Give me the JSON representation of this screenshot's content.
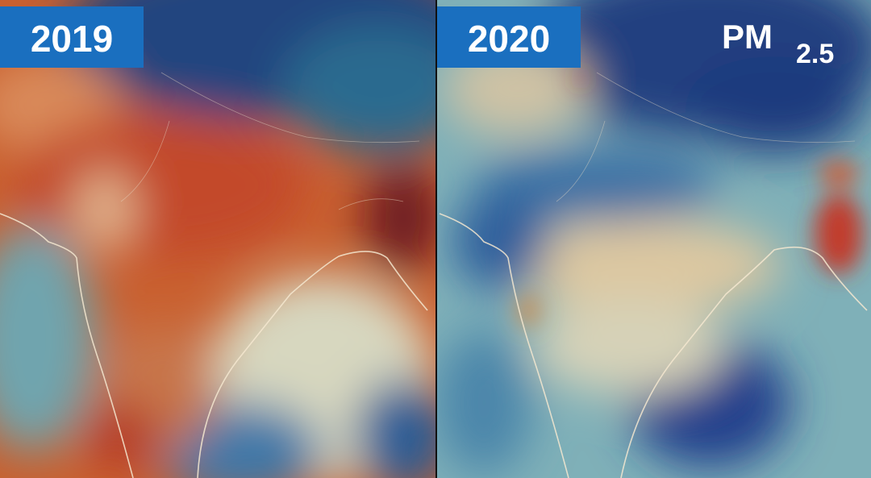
{
  "panels": [
    {
      "label": "2019"
    },
    {
      "label": "2020"
    }
  ],
  "pollutant": {
    "base": "PM",
    "subscript": "2.5"
  }
}
